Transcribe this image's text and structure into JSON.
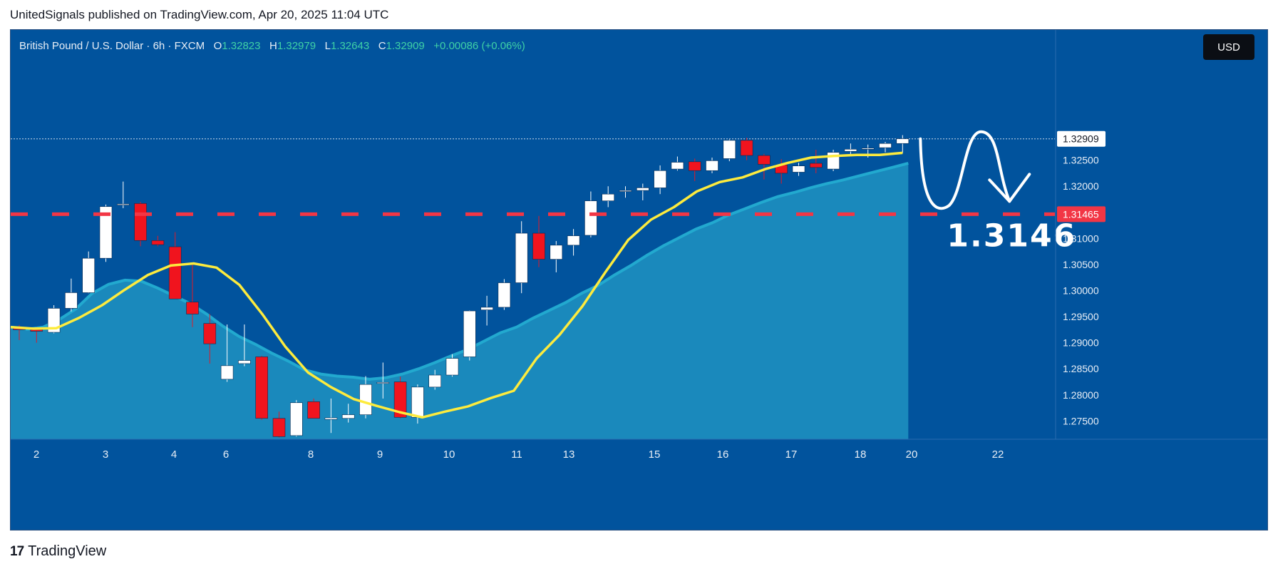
{
  "header": {
    "published": "UnitedSignals published on TradingView.com, Apr 20, 2025 11:04 UTC"
  },
  "legend": {
    "symbol": "British Pound / U.S. Dollar · 6h · FXCM",
    "o_label": "O",
    "o_value": "1.32823",
    "h_label": "H",
    "h_value": "1.32979",
    "l_label": "L",
    "l_value": "1.32643",
    "c_label": "C",
    "c_value": "1.32909",
    "change": "+0.00086 (+0.06%)"
  },
  "currency_button": "USD",
  "footer": {
    "logo_mark": "17",
    "brand": "TradingView"
  },
  "colors": {
    "background": "#01539d",
    "bull_candle": "#ffffff",
    "bear_candle": "#f0141e",
    "fast_ma": "#fdeb3d",
    "slow_ma_area": "#2fb6d6",
    "target_line": "#f23645",
    "text_light": "#e8eef6"
  },
  "chart_data": {
    "type": "candlestick",
    "ylim": [
      1.2715,
      1.3445
    ],
    "y_ticks": [
      "1.32500",
      "1.32000",
      "1.31000",
      "1.30500",
      "1.30000",
      "1.29500",
      "1.29000",
      "1.28500",
      "1.28000",
      "1.27500"
    ],
    "x_ticks": [
      "2",
      "3",
      "4",
      "6",
      "8",
      "9",
      "10",
      "11",
      "13",
      "15",
      "16",
      "17",
      "18",
      "20",
      "22"
    ],
    "last_price": "1.32909",
    "target_price_label": "1.31465",
    "target_price": 1.31465,
    "annotation": "1.3146",
    "candles": [
      {
        "o": 1.2928,
        "h": 1.2934,
        "l": 1.2905,
        "c": 1.2925
      },
      {
        "o": 1.2925,
        "h": 1.293,
        "l": 1.29,
        "c": 1.2922
      },
      {
        "o": 1.292,
        "h": 1.2972,
        "l": 1.2918,
        "c": 1.2966
      },
      {
        "o": 1.2966,
        "h": 1.3023,
        "l": 1.296,
        "c": 1.2996
      },
      {
        "o": 1.2996,
        "h": 1.3075,
        "l": 1.2995,
        "c": 1.3062
      },
      {
        "o": 1.3062,
        "h": 1.3165,
        "l": 1.3055,
        "c": 1.3161
      },
      {
        "o": 1.3164,
        "h": 1.3209,
        "l": 1.3158,
        "c": 1.3166
      },
      {
        "o": 1.3167,
        "h": 1.317,
        "l": 1.3085,
        "c": 1.3096
      },
      {
        "o": 1.3096,
        "h": 1.3105,
        "l": 1.3085,
        "c": 1.3088
      },
      {
        "o": 1.3084,
        "h": 1.3112,
        "l": 1.299,
        "c": 1.2984
      },
      {
        "o": 1.2978,
        "h": 1.3052,
        "l": 1.293,
        "c": 1.2955
      },
      {
        "o": 1.2937,
        "h": 1.2955,
        "l": 1.286,
        "c": 1.2898
      },
      {
        "o": 1.283,
        "h": 1.2935,
        "l": 1.2825,
        "c": 1.2856
      },
      {
        "o": 1.286,
        "h": 1.2935,
        "l": 1.2855,
        "c": 1.2866
      },
      {
        "o": 1.2873,
        "h": 1.2875,
        "l": 1.2752,
        "c": 1.2755
      },
      {
        "o": 1.2755,
        "h": 1.2768,
        "l": 1.2718,
        "c": 1.272
      },
      {
        "o": 1.2722,
        "h": 1.279,
        "l": 1.272,
        "c": 1.2785
      },
      {
        "o": 1.2787,
        "h": 1.2793,
        "l": 1.2755,
        "c": 1.2755
      },
      {
        "o": 1.2753,
        "h": 1.2793,
        "l": 1.2727,
        "c": 1.2756
      },
      {
        "o": 1.2755,
        "h": 1.2783,
        "l": 1.2747,
        "c": 1.2762
      },
      {
        "o": 1.2762,
        "h": 1.2836,
        "l": 1.2755,
        "c": 1.282
      },
      {
        "o": 1.2822,
        "h": 1.2862,
        "l": 1.2793,
        "c": 1.2824
      },
      {
        "o": 1.2825,
        "h": 1.2835,
        "l": 1.2755,
        "c": 1.2757
      },
      {
        "o": 1.2757,
        "h": 1.282,
        "l": 1.2745,
        "c": 1.2815
      },
      {
        "o": 1.2815,
        "h": 1.2848,
        "l": 1.281,
        "c": 1.2838
      },
      {
        "o": 1.2838,
        "h": 1.2878,
        "l": 1.2835,
        "c": 1.287
      },
      {
        "o": 1.2873,
        "h": 1.2962,
        "l": 1.2866,
        "c": 1.2961
      },
      {
        "o": 1.2963,
        "h": 1.299,
        "l": 1.2933,
        "c": 1.2968
      },
      {
        "o": 1.2968,
        "h": 1.3022,
        "l": 1.2963,
        "c": 1.3015
      },
      {
        "o": 1.3015,
        "h": 1.3133,
        "l": 1.2995,
        "c": 1.311
      },
      {
        "o": 1.311,
        "h": 1.3143,
        "l": 1.3045,
        "c": 1.306
      },
      {
        "o": 1.306,
        "h": 1.3095,
        "l": 1.3035,
        "c": 1.3087
      },
      {
        "o": 1.3087,
        "h": 1.3118,
        "l": 1.3067,
        "c": 1.3105
      },
      {
        "o": 1.3106,
        "h": 1.319,
        "l": 1.3102,
        "c": 1.3172
      },
      {
        "o": 1.3172,
        "h": 1.32,
        "l": 1.316,
        "c": 1.3185
      },
      {
        "o": 1.319,
        "h": 1.32,
        "l": 1.3178,
        "c": 1.3192
      },
      {
        "o": 1.3192,
        "h": 1.3205,
        "l": 1.3173,
        "c": 1.3197
      },
      {
        "o": 1.3197,
        "h": 1.324,
        "l": 1.3185,
        "c": 1.323
      },
      {
        "o": 1.3233,
        "h": 1.3257,
        "l": 1.323,
        "c": 1.3246
      },
      {
        "o": 1.3247,
        "h": 1.3253,
        "l": 1.321,
        "c": 1.323
      },
      {
        "o": 1.323,
        "h": 1.3255,
        "l": 1.3225,
        "c": 1.3249
      },
      {
        "o": 1.3253,
        "h": 1.329,
        "l": 1.3248,
        "c": 1.3288
      },
      {
        "o": 1.3288,
        "h": 1.3293,
        "l": 1.325,
        "c": 1.3259
      },
      {
        "o": 1.3259,
        "h": 1.3262,
        "l": 1.3213,
        "c": 1.3242
      },
      {
        "o": 1.3241,
        "h": 1.3252,
        "l": 1.3205,
        "c": 1.3225
      },
      {
        "o": 1.3227,
        "h": 1.3245,
        "l": 1.322,
        "c": 1.3239
      },
      {
        "o": 1.3244,
        "h": 1.327,
        "l": 1.3225,
        "c": 1.3236
      },
      {
        "o": 1.3233,
        "h": 1.327,
        "l": 1.3229,
        "c": 1.3265
      },
      {
        "o": 1.3267,
        "h": 1.3282,
        "l": 1.3258,
        "c": 1.3271
      },
      {
        "o": 1.3271,
        "h": 1.328,
        "l": 1.3255,
        "c": 1.3273
      },
      {
        "o": 1.3274,
        "h": 1.3285,
        "l": 1.3265,
        "c": 1.3282
      },
      {
        "o": 1.3282,
        "h": 1.3298,
        "l": 1.3264,
        "c": 1.3291
      }
    ],
    "fast_ma": [
      1.293,
      1.2927,
      1.2928,
      1.2948,
      1.2972,
      1.3002,
      1.303,
      1.3048,
      1.3052,
      1.3044,
      1.3011,
      1.2955,
      1.2893,
      1.2843,
      1.2815,
      1.2792,
      1.2779,
      1.2767,
      1.2757,
      1.2768,
      1.2778,
      1.2794,
      1.2808,
      1.287,
      1.2915,
      1.297,
      1.3035,
      1.3097,
      1.3136,
      1.316,
      1.319,
      1.3208,
      1.3217,
      1.3233,
      1.3245,
      1.3255,
      1.3258,
      1.326,
      1.326,
      1.3264
    ],
    "slow_ma": [
      1.293,
      1.2926,
      1.293,
      1.2945,
      1.2965,
      1.2995,
      1.3012,
      1.302,
      1.3018,
      1.3005,
      1.299,
      1.2975,
      1.2955,
      1.2932,
      1.2912,
      1.2897,
      1.288,
      1.2865,
      1.2848,
      1.284,
      1.2836,
      1.2834,
      1.283,
      1.2833,
      1.284,
      1.285,
      1.2862,
      1.2875,
      1.2887,
      1.2903,
      1.2919,
      1.293,
      1.2947,
      1.2962,
      1.2977,
      1.2995,
      1.301,
      1.303,
      1.3048,
      1.3068,
      1.3086,
      1.3102,
      1.3118,
      1.313,
      1.3145,
      1.3157,
      1.3169,
      1.318,
      1.3188,
      1.3197,
      1.3205,
      1.3212,
      1.322,
      1.3228,
      1.3236,
      1.3244
    ]
  }
}
